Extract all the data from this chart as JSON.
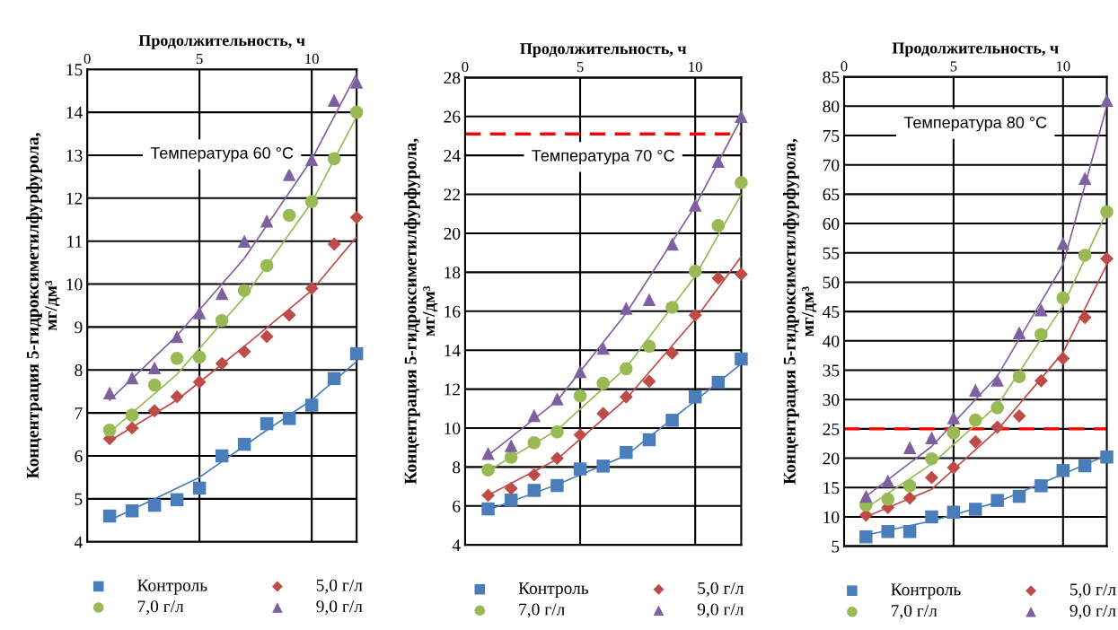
{
  "chart_data": [
    {
      "type": "scatter",
      "xlabel": "Продолжительность, ч",
      "ylabel": "Концентрация 5-гидроксиметилфурфурола,\nмг/дм³",
      "x": [
        1,
        2,
        3,
        4,
        5,
        6,
        7,
        8,
        9,
        10,
        11,
        12
      ],
      "xlim": [
        0,
        12
      ],
      "xticks": [
        0,
        5,
        10
      ],
      "ylim": [
        4,
        15
      ],
      "yticks": [
        4,
        5,
        6,
        7,
        8,
        9,
        10,
        11,
        12,
        13,
        14,
        15
      ],
      "grid": true,
      "legend": "bottom",
      "annotations": [
        "Температура 60 °C"
      ],
      "series": [
        {
          "name": "Контроль",
          "color": "#4a7ebb",
          "marker": "square",
          "values": [
            4.6,
            4.72,
            4.85,
            4.98,
            5.25,
            6.0,
            6.27,
            6.75,
            6.87,
            7.18,
            7.8,
            8.38
          ]
        },
        {
          "name": "5,0 г/л",
          "color": "#be4b48",
          "marker": "diamond",
          "values": [
            6.4,
            6.65,
            7.05,
            7.38,
            7.72,
            8.15,
            8.43,
            8.78,
            9.28,
            9.9,
            10.93,
            11.55
          ]
        },
        {
          "name": "7,0 г/л",
          "color": "#98b954",
          "marker": "circle",
          "values": [
            6.6,
            6.95,
            7.65,
            8.27,
            8.3,
            9.15,
            9.85,
            10.43,
            11.6,
            11.92,
            12.92,
            14.0
          ]
        },
        {
          "name": "9,0 г/л",
          "color": "#7d60a0",
          "marker": "triangle",
          "values": [
            7.47,
            7.82,
            8.05,
            8.78,
            9.33,
            9.78,
            11.0,
            11.47,
            12.55,
            12.9,
            14.28,
            14.7
          ]
        },
        {
          "type": "line",
          "color": "#4a7ebb",
          "x": [
            1,
            5,
            8,
            10,
            12
          ],
          "values": [
            4.5,
            5.5,
            6.6,
            7.3,
            8.2
          ]
        },
        {
          "type": "line",
          "color": "#be4b48",
          "x": [
            1,
            4,
            7,
            10,
            12
          ],
          "values": [
            6.35,
            7.3,
            8.55,
            9.85,
            11.1
          ]
        },
        {
          "type": "line",
          "color": "#98b954",
          "x": [
            1,
            4,
            7,
            10,
            12
          ],
          "values": [
            6.55,
            7.9,
            9.7,
            11.9,
            13.9
          ]
        },
        {
          "type": "line",
          "color": "#7d60a0",
          "x": [
            1,
            4,
            7,
            10,
            12
          ],
          "values": [
            7.3,
            8.8,
            10.6,
            12.9,
            14.9
          ]
        }
      ]
    },
    {
      "type": "scatter",
      "xlabel": "Продолжительность, ч",
      "ylabel": "Концентрация 5-гидроксиметилфурфурола,\nмг/дм³",
      "x": [
        1,
        2,
        3,
        4,
        5,
        6,
        7,
        8,
        9,
        10,
        11,
        12
      ],
      "xlim": [
        0,
        12
      ],
      "xticks": [
        0,
        5,
        10
      ],
      "ylim": [
        4,
        28
      ],
      "yticks": [
        4,
        6,
        8,
        10,
        12,
        14,
        16,
        18,
        20,
        22,
        24,
        26,
        28
      ],
      "grid": true,
      "legend": "bottom",
      "annotations": [
        "Температура 70 °C"
      ],
      "ref_lines": [
        {
          "axis": "y",
          "value": 25.1,
          "color": "#ff0000",
          "line_style": "dashed"
        }
      ],
      "series": [
        {
          "name": "Контроль",
          "color": "#4a7ebb",
          "marker": "square",
          "values": [
            5.85,
            6.3,
            6.8,
            7.05,
            7.9,
            8.05,
            8.75,
            9.4,
            10.4,
            11.6,
            12.35,
            13.55
          ]
        },
        {
          "name": "5,0 г/л",
          "color": "#be4b48",
          "marker": "diamond",
          "values": [
            6.55,
            6.9,
            7.6,
            8.45,
            9.65,
            10.75,
            11.6,
            12.4,
            13.85,
            15.8,
            17.7,
            17.9
          ]
        },
        {
          "name": "7,0 г/л",
          "color": "#98b954",
          "marker": "circle",
          "values": [
            7.85,
            8.5,
            9.25,
            9.8,
            11.65,
            12.3,
            13.05,
            14.2,
            16.2,
            18.05,
            20.4,
            22.6
          ]
        },
        {
          "name": "9,0 г/л",
          "color": "#7d60a0",
          "marker": "triangle",
          "values": [
            8.7,
            9.1,
            10.65,
            11.5,
            12.9,
            14.1,
            16.15,
            16.6,
            19.45,
            21.45,
            23.7,
            26.0
          ]
        },
        {
          "type": "line",
          "color": "#4a7ebb",
          "x": [
            1,
            4,
            7,
            10,
            12
          ],
          "values": [
            5.8,
            7.1,
            8.6,
            11.4,
            13.3
          ]
        },
        {
          "type": "line",
          "color": "#be4b48",
          "x": [
            1,
            4,
            7,
            10,
            12
          ],
          "values": [
            6.55,
            8.4,
            11.5,
            15.6,
            18.8
          ]
        },
        {
          "type": "line",
          "color": "#98b954",
          "x": [
            1,
            4,
            7,
            10,
            12
          ],
          "values": [
            7.8,
            9.9,
            13.1,
            17.8,
            22.0
          ]
        },
        {
          "type": "line",
          "color": "#7d60a0",
          "x": [
            1,
            4,
            7,
            10,
            12
          ],
          "values": [
            8.6,
            11.4,
            15.9,
            21.4,
            25.9
          ]
        }
      ]
    },
    {
      "type": "scatter",
      "xlabel": "Продолжительность, ч",
      "ylabel": "Концентрация 5-гидроксиметилфурфурола,\nмг/дм³",
      "x": [
        1,
        2,
        3,
        4,
        5,
        6,
        7,
        8,
        9,
        10,
        11,
        12
      ],
      "xlim": [
        0,
        12
      ],
      "xticks": [
        0,
        5,
        10
      ],
      "ylim": [
        5,
        85
      ],
      "yticks": [
        5,
        10,
        15,
        20,
        25,
        30,
        35,
        40,
        45,
        50,
        55,
        60,
        65,
        70,
        75,
        80,
        85
      ],
      "grid": true,
      "legend": "bottom",
      "annotations": [
        "Температура 80 °C"
      ],
      "ref_lines": [
        {
          "axis": "y",
          "value": 25,
          "color": "#ff0000",
          "line_style": "dashed"
        }
      ],
      "series": [
        {
          "name": "Контроль",
          "color": "#4a7ebb",
          "marker": "square",
          "values": [
            6.6,
            7.5,
            7.5,
            10.0,
            10.8,
            11.3,
            12.8,
            13.5,
            15.3,
            17.9,
            18.7,
            20.2
          ]
        },
        {
          "name": "5,0 г/л",
          "color": "#be4b48",
          "marker": "diamond",
          "values": [
            10.3,
            11.6,
            13.2,
            16.7,
            18.4,
            22.8,
            25.3,
            27.2,
            33.2,
            37.0,
            44.0,
            54.0
          ]
        },
        {
          "name": "7,0 г/л",
          "color": "#98b954",
          "marker": "circle",
          "values": [
            12.0,
            13.0,
            15.3,
            19.9,
            24.3,
            26.5,
            28.6,
            33.9,
            41.1,
            47.3,
            54.6,
            62.0
          ]
        },
        {
          "name": "9,0 г/л",
          "color": "#7d60a0",
          "marker": "triangle",
          "values": [
            13.5,
            16.1,
            21.8,
            23.5,
            26.9,
            31.6,
            33.3,
            41.4,
            45.3,
            56.6,
            67.7,
            81.0
          ]
        },
        {
          "type": "line",
          "color": "#4a7ebb",
          "x": [
            1,
            4,
            7,
            10,
            12
          ],
          "values": [
            6.9,
            9.3,
            12.5,
            17.3,
            20.5
          ]
        },
        {
          "type": "line",
          "color": "#be4b48",
          "x": [
            1,
            4,
            7,
            10,
            12
          ],
          "values": [
            10.0,
            14.7,
            24.8,
            38.0,
            53.0
          ]
        },
        {
          "type": "line",
          "color": "#98b954",
          "x": [
            1,
            4,
            7,
            10,
            12
          ],
          "values": [
            11.5,
            19.0,
            29.0,
            46.0,
            62.0
          ]
        },
        {
          "type": "line",
          "color": "#7d60a0",
          "x": [
            1,
            4,
            7,
            10,
            12
          ],
          "values": [
            13.5,
            22.0,
            34.0,
            53.0,
            80.0
          ]
        }
      ]
    }
  ]
}
